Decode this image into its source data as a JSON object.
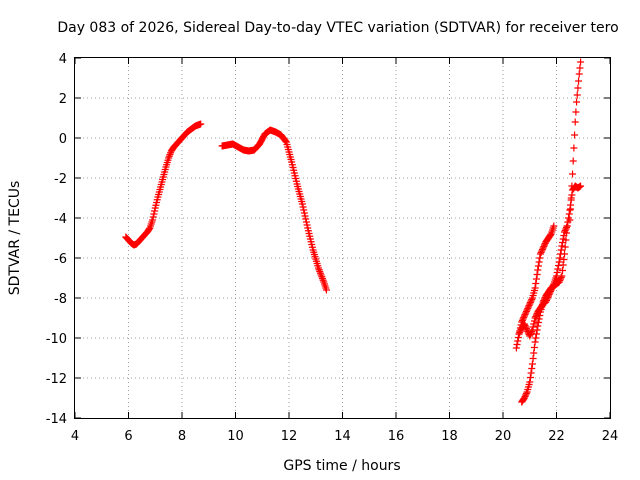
{
  "chart_data": {
    "type": "scatter",
    "title": "Day 083 of 2026, Sidereal Day-to-day VTEC variation (SDTVAR) for receiver tero",
    "xlabel": "GPS time / hours",
    "ylabel": "SDTVAR / TECUs",
    "xlim": [
      4,
      24
    ],
    "ylim": [
      -14,
      4
    ],
    "xticks": [
      4,
      6,
      8,
      10,
      12,
      14,
      16,
      18,
      20,
      22,
      24
    ],
    "yticks": [
      -14,
      -12,
      -10,
      -8,
      -6,
      -4,
      -2,
      0,
      2,
      4
    ],
    "grid": true,
    "marker": "+",
    "color": "#ff0000",
    "series": [
      {
        "name": "segment-1",
        "x": [
          5.9,
          6.0,
          6.1,
          6.2,
          6.3,
          6.4,
          6.5,
          6.6,
          6.7,
          6.8,
          6.9,
          7.0,
          7.1,
          7.2,
          7.3,
          7.4,
          7.5,
          7.6,
          7.7,
          7.8,
          7.9,
          8.0,
          8.1,
          8.2,
          8.3,
          8.4,
          8.5,
          8.6,
          8.7
        ],
        "y": [
          -4.95,
          -5.1,
          -5.25,
          -5.35,
          -5.3,
          -5.15,
          -5.0,
          -4.85,
          -4.7,
          -4.5,
          -4.1,
          -3.5,
          -2.95,
          -2.45,
          -1.95,
          -1.45,
          -1.0,
          -0.65,
          -0.45,
          -0.3,
          -0.15,
          0.0,
          0.15,
          0.3,
          0.4,
          0.5,
          0.6,
          0.65,
          0.7
        ]
      },
      {
        "name": "segment-2",
        "x": [
          9.5,
          9.7,
          9.9,
          10.1,
          10.3,
          10.5,
          10.7,
          10.9,
          11.1,
          11.3,
          11.5,
          11.7,
          11.9,
          12.1,
          12.3,
          12.5,
          12.7,
          12.9,
          13.1,
          13.3,
          13.4
        ],
        "y": [
          -0.4,
          -0.35,
          -0.3,
          -0.45,
          -0.6,
          -0.65,
          -0.6,
          -0.3,
          0.2,
          0.4,
          0.3,
          0.15,
          -0.2,
          -1.2,
          -2.3,
          -3.3,
          -4.5,
          -5.6,
          -6.5,
          -7.2,
          -7.6
        ]
      },
      {
        "name": "segment-3",
        "x": [
          20.5,
          20.6,
          20.7,
          20.8,
          20.9,
          21.0,
          21.1,
          21.2,
          21.3,
          21.4,
          21.5,
          21.6,
          21.7,
          21.8,
          21.9
        ],
        "y": [
          -10.5,
          -9.8,
          -9.2,
          -8.9,
          -8.6,
          -8.3,
          -8.0,
          -7.5,
          -6.6,
          -5.8,
          -5.5,
          -5.2,
          -5.0,
          -4.8,
          -4.4
        ]
      },
      {
        "name": "segment-4",
        "x": [
          20.6,
          20.7,
          20.8,
          20.9,
          21.0,
          21.1,
          21.2,
          21.3,
          21.4,
          21.5,
          21.6,
          21.7,
          21.8,
          21.9,
          22.0,
          22.1,
          22.2,
          22.3,
          22.4
        ],
        "y": [
          -9.8,
          -9.5,
          -9.3,
          -9.6,
          -9.9,
          -9.6,
          -9.0,
          -8.7,
          -8.5,
          -8.3,
          -8.2,
          -7.9,
          -7.6,
          -7.3,
          -6.9,
          -6.2,
          -5.4,
          -4.7,
          -4.4
        ]
      },
      {
        "name": "segment-5",
        "x": [
          20.7,
          20.8,
          20.9,
          21.0,
          21.1,
          21.2,
          21.3,
          21.4,
          21.5,
          21.6,
          21.7,
          21.8,
          21.9,
          22.0,
          22.1,
          22.2,
          22.3,
          22.4,
          22.5,
          22.6,
          22.7,
          22.8,
          22.9
        ],
        "y": [
          -13.2,
          -13.0,
          -12.7,
          -12.2,
          -11.3,
          -10.2,
          -9.4,
          -8.7,
          -8.2,
          -7.9,
          -7.7,
          -7.5,
          -7.4,
          -7.3,
          -7.2,
          -6.9,
          -5.8,
          -4.4,
          -3.6,
          -2.6,
          -2.4,
          -2.5,
          -2.4
        ]
      },
      {
        "name": "segment-6",
        "x": [
          22.5,
          22.55,
          22.6,
          22.65,
          22.7,
          22.75,
          22.8,
          22.85,
          22.9
        ],
        "y": [
          -4.1,
          -3.0,
          -1.8,
          -0.5,
          0.8,
          1.8,
          2.5,
          3.2,
          3.8
        ]
      }
    ]
  }
}
